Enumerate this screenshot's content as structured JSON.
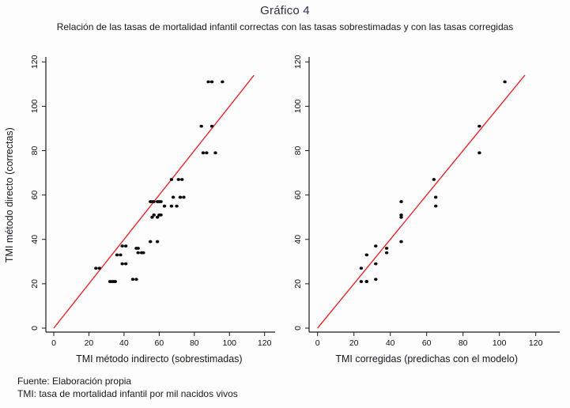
{
  "header": {
    "title": "Gráfico 4",
    "subtitle": "Relación de las tasas de mortalidad infantil correctas con las tasas sobrestimadas y con las tasas corregidas"
  },
  "footer": {
    "source": "Fuente: Elaboración propia",
    "abbreviation": "TMI: tasa de mortalidad infantil por mil nacidos vivos"
  },
  "colors": {
    "reference_line": "#e6282d",
    "point": "#0b0b0b",
    "axis": "#1a1a1a",
    "tick_text": "#111111",
    "label_text": "#15181f"
  },
  "chart_data": [
    {
      "type": "scatter",
      "name": "left",
      "title": "",
      "xlabel": "TMI método indirecto (sobrestimadas)",
      "ylabel": "TMI método directo (correctas)",
      "xlim": [
        0,
        120
      ],
      "ylim": [
        0,
        120
      ],
      "xticks": [
        0,
        20,
        40,
        60,
        80,
        100,
        120
      ],
      "yticks": [
        0,
        20,
        40,
        60,
        80,
        100,
        120
      ],
      "grid": false,
      "legend": "none",
      "reference_line": {
        "type": "identity",
        "from": [
          0,
          0
        ],
        "to": [
          114,
          114
        ]
      },
      "points": [
        [
          24,
          27
        ],
        [
          26,
          27
        ],
        [
          32,
          21
        ],
        [
          33,
          21
        ],
        [
          34,
          21
        ],
        [
          35,
          21
        ],
        [
          36,
          33
        ],
        [
          38,
          33
        ],
        [
          39,
          29
        ],
        [
          41,
          29
        ],
        [
          39,
          37
        ],
        [
          41,
          37
        ],
        [
          45,
          22
        ],
        [
          47,
          22
        ],
        [
          47,
          36
        ],
        [
          48,
          36
        ],
        [
          48,
          34
        ],
        [
          50,
          34
        ],
        [
          51,
          34
        ],
        [
          55,
          39
        ],
        [
          59,
          39
        ],
        [
          55,
          57
        ],
        [
          56,
          57
        ],
        [
          57,
          57
        ],
        [
          59,
          57
        ],
        [
          60,
          57
        ],
        [
          61,
          57
        ],
        [
          56,
          50
        ],
        [
          57,
          51
        ],
        [
          59,
          50
        ],
        [
          60,
          51
        ],
        [
          61,
          51
        ],
        [
          63,
          55
        ],
        [
          67,
          55
        ],
        [
          70,
          55
        ],
        [
          67,
          67
        ],
        [
          71,
          67
        ],
        [
          73,
          67
        ],
        [
          68,
          59
        ],
        [
          72,
          59
        ],
        [
          74,
          59
        ],
        [
          84,
          91
        ],
        [
          90,
          91
        ],
        [
          85,
          79
        ],
        [
          87,
          79
        ],
        [
          92,
          79
        ],
        [
          88,
          111
        ],
        [
          90,
          111
        ],
        [
          96,
          111
        ]
      ]
    },
    {
      "type": "scatter",
      "name": "right",
      "title": "",
      "xlabel": "TMI corregidas (predichas con el modelo)",
      "ylabel": "",
      "xlim": [
        0,
        120
      ],
      "ylim": [
        0,
        120
      ],
      "xticks": [
        0,
        20,
        40,
        60,
        80,
        100,
        120
      ],
      "yticks": [
        0,
        20,
        40,
        60,
        80,
        100,
        120
      ],
      "grid": false,
      "legend": "none",
      "reference_line": {
        "type": "identity",
        "from": [
          0,
          0
        ],
        "to": [
          114,
          114
        ]
      },
      "points": [
        [
          24,
          21
        ],
        [
          27,
          21
        ],
        [
          32,
          22
        ],
        [
          24,
          27
        ],
        [
          32,
          29
        ],
        [
          27,
          33
        ],
        [
          27,
          21
        ],
        [
          38,
          34
        ],
        [
          38,
          36
        ],
        [
          32,
          37
        ],
        [
          46,
          39
        ],
        [
          46,
          50
        ],
        [
          46,
          51
        ],
        [
          46,
          57
        ],
        [
          65,
          55
        ],
        [
          65,
          59
        ],
        [
          64,
          67
        ],
        [
          89,
          79
        ],
        [
          89,
          91
        ],
        [
          103,
          111
        ]
      ]
    }
  ]
}
